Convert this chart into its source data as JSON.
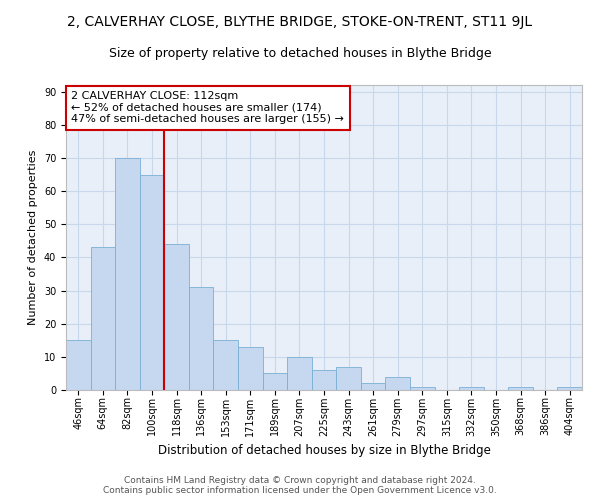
{
  "title": "2, CALVERHAY CLOSE, BLYTHE BRIDGE, STOKE-ON-TRENT, ST11 9JL",
  "subtitle": "Size of property relative to detached houses in Blythe Bridge",
  "xlabel": "Distribution of detached houses by size in Blythe Bridge",
  "ylabel": "Number of detached properties",
  "footer_line1": "Contains HM Land Registry data © Crown copyright and database right 2024.",
  "footer_line2": "Contains public sector information licensed under the Open Government Licence v3.0.",
  "categories": [
    "46sqm",
    "64sqm",
    "82sqm",
    "100sqm",
    "118sqm",
    "136sqm",
    "153sqm",
    "171sqm",
    "189sqm",
    "207sqm",
    "225sqm",
    "243sqm",
    "261sqm",
    "279sqm",
    "297sqm",
    "315sqm",
    "332sqm",
    "350sqm",
    "368sqm",
    "386sqm",
    "404sqm"
  ],
  "values": [
    15,
    43,
    70,
    65,
    44,
    31,
    15,
    13,
    5,
    10,
    6,
    7,
    2,
    4,
    1,
    0,
    1,
    0,
    1,
    0,
    1
  ],
  "bar_color": "#c5d8f0",
  "bar_edge_color": "#7aafd4",
  "vline_x": 3.5,
  "vline_color": "#cc0000",
  "annotation_title": "2 CALVERHAY CLOSE: 112sqm",
  "annotation_line2": "← 52% of detached houses are smaller (174)",
  "annotation_line3": "47% of semi-detached houses are larger (155) →",
  "ylim": [
    0,
    92
  ],
  "yticks": [
    0,
    10,
    20,
    30,
    40,
    50,
    60,
    70,
    80,
    90
  ],
  "grid_color": "#c8d8ec",
  "bg_color": "#e8eff8",
  "title_fontsize": 10,
  "subtitle_fontsize": 9,
  "ylabel_fontsize": 8,
  "xlabel_fontsize": 8.5,
  "tick_fontsize": 7,
  "annotation_fontsize": 8,
  "footer_fontsize": 6.5
}
